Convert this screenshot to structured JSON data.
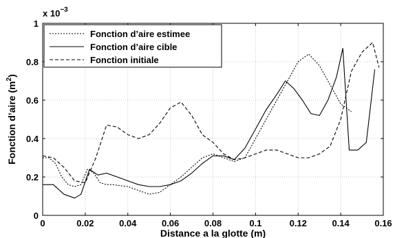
{
  "chart_data": {
    "type": "line",
    "xlabel": "Distance a la glotte (m)",
    "ylabel_main": "Fonction d’aire (m",
    "ylabel_sup": "2",
    "ylabel_end": ")",
    "y_multiplier_base": "x 10",
    "y_multiplier_exp": "−3",
    "xlim": [
      0,
      0.16
    ],
    "ylim": [
      0,
      1
    ],
    "xticks": [
      0,
      0.02,
      0.04,
      0.06,
      0.08,
      0.1,
      0.12,
      0.14,
      0.16
    ],
    "xtick_labels": [
      "0",
      "0.02",
      "0.04",
      "0.06",
      "0.08",
      "0.1",
      "0.12",
      "0.14",
      "0.16"
    ],
    "yticks": [
      0,
      0.2,
      0.4,
      0.6,
      0.8,
      1
    ],
    "ytick_labels": [
      "0",
      "0.2",
      "0.4",
      "0.6",
      "0.8",
      "1"
    ],
    "grid": true,
    "legend_position": "top-left",
    "series": [
      {
        "name": "Fonction d’aire estimee",
        "style": "dotted",
        "x": [
          0,
          0.003,
          0.006,
          0.009,
          0.012,
          0.015,
          0.018,
          0.021,
          0.024,
          0.027,
          0.03,
          0.033,
          0.036,
          0.04,
          0.045,
          0.05,
          0.055,
          0.06,
          0.065,
          0.07,
          0.075,
          0.08,
          0.085,
          0.09,
          0.095,
          0.1,
          0.105,
          0.11,
          0.115,
          0.12,
          0.125,
          0.13,
          0.135,
          0.14,
          0.145
        ],
        "values": [
          0.3,
          0.3,
          0.27,
          0.2,
          0.16,
          0.15,
          0.16,
          0.24,
          0.22,
          0.17,
          0.16,
          0.16,
          0.155,
          0.15,
          0.13,
          0.11,
          0.12,
          0.16,
          0.2,
          0.25,
          0.3,
          0.32,
          0.3,
          0.28,
          0.3,
          0.4,
          0.5,
          0.6,
          0.7,
          0.8,
          0.84,
          0.78,
          0.68,
          0.58,
          0.54
        ]
      },
      {
        "name": "Fonction d’aire cible",
        "style": "solid",
        "x": [
          0,
          0.005,
          0.01,
          0.015,
          0.018,
          0.022,
          0.026,
          0.03,
          0.035,
          0.04,
          0.045,
          0.05,
          0.055,
          0.06,
          0.065,
          0.07,
          0.075,
          0.08,
          0.085,
          0.09,
          0.095,
          0.1,
          0.105,
          0.11,
          0.114,
          0.118,
          0.122,
          0.126,
          0.13,
          0.134,
          0.138,
          0.141,
          0.144,
          0.148,
          0.152,
          0.156
        ],
        "values": [
          0.16,
          0.16,
          0.11,
          0.09,
          0.11,
          0.24,
          0.21,
          0.22,
          0.2,
          0.18,
          0.16,
          0.15,
          0.15,
          0.16,
          0.18,
          0.22,
          0.27,
          0.31,
          0.31,
          0.29,
          0.35,
          0.45,
          0.55,
          0.63,
          0.7,
          0.66,
          0.6,
          0.53,
          0.52,
          0.6,
          0.72,
          0.87,
          0.34,
          0.34,
          0.38,
          0.76
        ]
      },
      {
        "name": "Fonction initiale",
        "style": "dashed",
        "x": [
          0,
          0.005,
          0.01,
          0.015,
          0.02,
          0.025,
          0.03,
          0.035,
          0.04,
          0.045,
          0.05,
          0.055,
          0.06,
          0.065,
          0.07,
          0.075,
          0.08,
          0.085,
          0.09,
          0.095,
          0.1,
          0.105,
          0.11,
          0.115,
          0.12,
          0.125,
          0.13,
          0.135,
          0.14,
          0.145,
          0.15,
          0.155,
          0.158
        ],
        "values": [
          0.31,
          0.3,
          0.25,
          0.18,
          0.17,
          0.3,
          0.47,
          0.46,
          0.42,
          0.4,
          0.42,
          0.48,
          0.56,
          0.59,
          0.52,
          0.42,
          0.38,
          0.32,
          0.29,
          0.3,
          0.32,
          0.34,
          0.34,
          0.32,
          0.3,
          0.3,
          0.32,
          0.36,
          0.5,
          0.75,
          0.85,
          0.9,
          0.77
        ]
      }
    ]
  }
}
